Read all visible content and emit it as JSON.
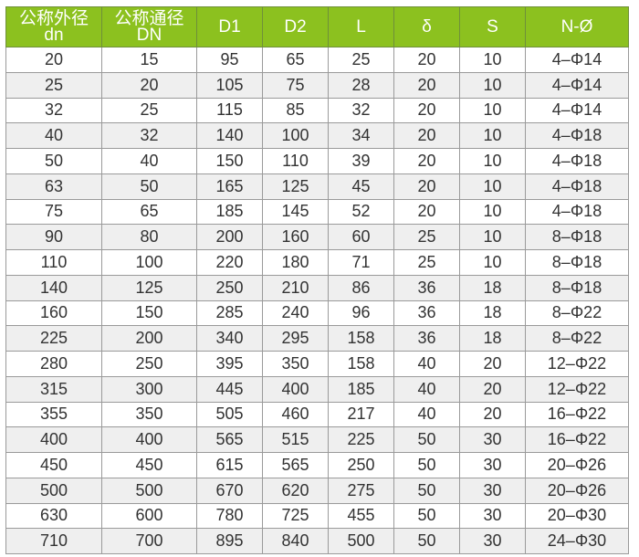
{
  "colors": {
    "header_bg": "#8cc11f",
    "header_text": "#ffffff",
    "alt_row": "#efefef"
  },
  "headers": [
    {
      "line1": "公称外径",
      "line2": "dn"
    },
    {
      "line1": "公称通径",
      "line2": "DN"
    },
    {
      "line1": "D1",
      "line2": ""
    },
    {
      "line1": "D2",
      "line2": ""
    },
    {
      "line1": "L",
      "line2": ""
    },
    {
      "line1": "δ",
      "line2": ""
    },
    {
      "line1": "S",
      "line2": ""
    },
    {
      "line1": "N-Ø",
      "line2": ""
    }
  ],
  "rows": [
    [
      "20",
      "15",
      "95",
      "65",
      "25",
      "20",
      "10",
      "4–Φ14"
    ],
    [
      "25",
      "20",
      "105",
      "75",
      "28",
      "20",
      "10",
      "4–Φ14"
    ],
    [
      "32",
      "25",
      "115",
      "85",
      "32",
      "20",
      "10",
      "4–Φ14"
    ],
    [
      "40",
      "32",
      "140",
      "100",
      "34",
      "20",
      "10",
      "4–Φ18"
    ],
    [
      "50",
      "40",
      "150",
      "110",
      "39",
      "20",
      "10",
      "4–Φ18"
    ],
    [
      "63",
      "50",
      "165",
      "125",
      "45",
      "20",
      "10",
      "4–Φ18"
    ],
    [
      "75",
      "65",
      "185",
      "145",
      "52",
      "20",
      "10",
      "4–Φ18"
    ],
    [
      "90",
      "80",
      "200",
      "160",
      "60",
      "25",
      "10",
      "8–Φ18"
    ],
    [
      "110",
      "100",
      "220",
      "180",
      "71",
      "25",
      "10",
      "8–Φ18"
    ],
    [
      "140",
      "125",
      "250",
      "210",
      "86",
      "36",
      "18",
      "8–Φ18"
    ],
    [
      "160",
      "150",
      "285",
      "240",
      "96",
      "36",
      "18",
      "8–Φ22"
    ],
    [
      "225",
      "200",
      "340",
      "295",
      "158",
      "36",
      "18",
      "8–Φ22"
    ],
    [
      "280",
      "250",
      "395",
      "350",
      "158",
      "40",
      "20",
      "12–Φ22"
    ],
    [
      "315",
      "300",
      "445",
      "400",
      "185",
      "40",
      "20",
      "12–Φ22"
    ],
    [
      "355",
      "350",
      "505",
      "460",
      "217",
      "40",
      "20",
      "16–Φ22"
    ],
    [
      "400",
      "400",
      "565",
      "515",
      "225",
      "50",
      "30",
      "16–Φ22"
    ],
    [
      "450",
      "450",
      "615",
      "565",
      "250",
      "50",
      "30",
      "20–Φ26"
    ],
    [
      "500",
      "500",
      "670",
      "620",
      "275",
      "50",
      "30",
      "20–Φ26"
    ],
    [
      "630",
      "600",
      "780",
      "725",
      "455",
      "50",
      "30",
      "20–Φ30"
    ],
    [
      "710",
      "700",
      "895",
      "840",
      "500",
      "50",
      "30",
      "24–Φ30"
    ]
  ]
}
